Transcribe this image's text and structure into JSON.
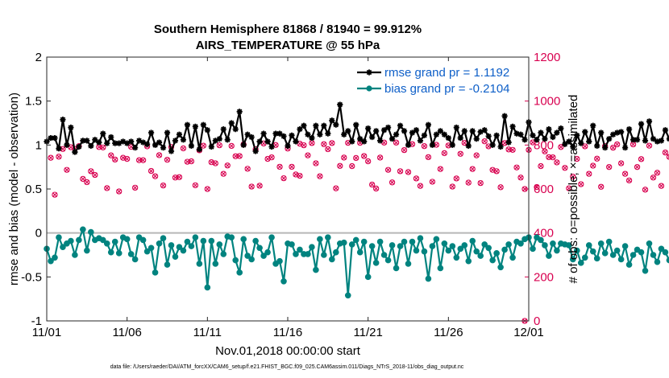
{
  "chart_data": {
    "type": "line",
    "title": "Southern Hemisphere 81868 / 81940 = 99.912%",
    "subtitle": "AIRS_TEMPERATURE @ 55 hPa",
    "xlabel": "Nov.01,2018 00:00:00 start",
    "ylabel": "rmse and bias (model - observation)",
    "y2label": "# of obs: o=possible; ×=assimilated",
    "footnote": "data file: /Users/raeder/DAI/ATM_forcXX/CAM6_setup/f.e21.FHIST_BGC.f09_025.CAM6assim.011/Diags_NTrS_2018-11/obs_diag_output.nc",
    "xlim": [
      0,
      30
    ],
    "ylim": [
      -1,
      2
    ],
    "y2lim": [
      0,
      1200
    ],
    "x_ticks": [
      0,
      5,
      10,
      15,
      20,
      25,
      30
    ],
    "x_tick_labels": [
      "11/01",
      "11/06",
      "11/11",
      "11/16",
      "11/21",
      "11/26",
      "12/01"
    ],
    "y_ticks": [
      -1,
      -0.5,
      0,
      0.5,
      1,
      1.5,
      2
    ],
    "y_tick_labels": [
      "-1",
      "-0.5",
      "0",
      "0.5",
      "1",
      "1.5",
      "2"
    ],
    "y2_ticks": [
      0,
      200,
      400,
      600,
      800,
      1000,
      1200
    ],
    "y2_tick_labels": [
      "0",
      "200",
      "400",
      "600",
      "800",
      "1000",
      "1200"
    ],
    "x_step_days": 0.25,
    "zero_line": true,
    "series": [
      {
        "name": "rmse grand pr = 1.1192",
        "legend_label": "rmse grand pr = 1.1192",
        "axis": "left",
        "color": "#000000",
        "marker": "star",
        "values": [
          1.04,
          1.08,
          1.08,
          0.96,
          1.29,
          1.0,
          1.2,
          0.92,
          0.98,
          1.05,
          1.05,
          0.99,
          1.06,
          1.03,
          1.13,
          1.02,
          1.09,
          1.02,
          1.02,
          1.04,
          1.02,
          1.04,
          0.97,
          1.05,
          1.03,
          1.01,
          1.14,
          1.0,
          1.03,
          0.97,
          1.14,
          0.93,
          1.05,
          1.12,
          1.06,
          1.23,
          0.99,
          1.21,
          0.95,
          1.23,
          1.17,
          0.98,
          1.05,
          1.07,
          1.18,
          1.06,
          1.25,
          1.18,
          1.38,
          1.0,
          1.12,
          1.09,
          0.93,
          1.04,
          1.13,
          1.04,
          0.98,
          1.13,
          1.13,
          1.1,
          0.99,
          1.11,
          1.04,
          1.18,
          1.22,
          1.12,
          1.08,
          1.22,
          1.12,
          1.22,
          1.13,
          1.28,
          1.23,
          1.46,
          1.12,
          1.16,
          1.04,
          1.23,
          1.07,
          1.04,
          1.19,
          1.09,
          1.16,
          1.05,
          1.17,
          1.2,
          1.07,
          1.12,
          1.22,
          1.16,
          1.0,
          1.14,
          1.17,
          1.05,
          1.11,
          1.23,
          1.0,
          1.12,
          1.16,
          1.12,
          1.08,
          1.0,
          1.2,
          1.08,
          1.16,
          0.99,
          1.16,
          1.07,
          1.15,
          1.17,
          1.1,
          1.0,
          1.11,
          0.98,
          1.33,
          1.03,
          1.21,
          1.13,
          1.12,
          1.06,
          1.26,
          1.11,
          1.06,
          1.14,
          1.07,
          1.18,
          1.09,
          1.14,
          1.19,
          1.01,
          1.04,
          0.98,
          1.11,
          1.02,
          1.15,
          1.04,
          1.22,
          0.99,
          1.14,
          0.97,
          1.07,
          1.12,
          1.14,
          1.15,
          0.97,
          1.18,
          1.06,
          1.06,
          1.24,
          1.05,
          1.27,
          1.07,
          1.04,
          1.05,
          1.17,
          1.07,
          1.06,
          1.03,
          1.0,
          1.13,
          1.14,
          1.12,
          1.1,
          1.11,
          1.03,
          1.11,
          1.13,
          1.05,
          1.09,
          1.02,
          1.11,
          1.0,
          1.1,
          1.06,
          1.05,
          1.07,
          1.05
        ]
      },
      {
        "name": "bias grand pr = -0.2104",
        "legend_label": "bias grand pr = -0.2104",
        "axis": "left",
        "color": "#00837f",
        "marker": "circle",
        "values": [
          -0.18,
          -0.32,
          -0.28,
          -0.05,
          -0.16,
          -0.12,
          -0.09,
          -0.25,
          -0.08,
          0.04,
          -0.2,
          0.01,
          -0.08,
          -0.06,
          -0.08,
          -0.12,
          -0.22,
          -0.1,
          -0.23,
          -0.05,
          -0.07,
          -0.24,
          -0.3,
          -0.05,
          -0.08,
          -0.21,
          -0.17,
          -0.45,
          -0.12,
          -0.06,
          -0.36,
          -0.14,
          -0.27,
          -0.16,
          -0.2,
          -0.1,
          -0.15,
          -0.05,
          -0.35,
          -0.09,
          -0.62,
          -0.09,
          -0.35,
          -0.13,
          -0.24,
          -0.04,
          -0.05,
          -0.31,
          -0.45,
          -0.07,
          -0.26,
          -0.3,
          -0.09,
          -0.17,
          -0.26,
          -0.22,
          -0.05,
          -0.35,
          -0.32,
          -0.55,
          -0.12,
          -0.13,
          -0.24,
          -0.19,
          -0.24,
          -0.24,
          -0.16,
          -0.42,
          -0.07,
          -0.25,
          -0.05,
          -0.3,
          -0.22,
          -0.12,
          -0.11,
          -0.71,
          -0.13,
          -0.08,
          -0.22,
          -0.1,
          -0.5,
          -0.15,
          -0.34,
          -0.1,
          -0.25,
          -0.31,
          -0.14,
          -0.4,
          -0.15,
          -0.1,
          -0.35,
          -0.1,
          -0.2,
          -0.06,
          -0.21,
          -0.52,
          -0.15,
          -0.07,
          -0.4,
          -0.12,
          -0.2,
          -0.15,
          -0.28,
          -0.18,
          -0.14,
          -0.32,
          -0.09,
          -0.21,
          -0.26,
          -0.13,
          -0.17,
          -0.31,
          -0.23,
          -0.39,
          -0.19,
          -0.13,
          -0.28,
          -0.1,
          -0.12,
          -0.07,
          -0.05,
          -0.18,
          -0.05,
          -0.08,
          -0.14,
          -0.26,
          -0.12,
          -0.2,
          -0.12,
          -0.13,
          -0.14,
          -0.3,
          -0.2,
          -0.34,
          -0.28,
          -0.14,
          -0.21,
          -0.29,
          -0.12,
          -0.23,
          -0.1,
          -0.25,
          -0.2,
          -0.3,
          -0.15,
          -0.36,
          -0.25,
          -0.19,
          -0.22,
          -0.43,
          -0.12,
          -0.25,
          -0.33,
          -0.18,
          -0.22,
          -0.31,
          -0.27,
          -0.2,
          -0.17,
          -0.31,
          -0.28,
          -0.14,
          -0.25,
          -0.22,
          -0.28,
          -0.38,
          -0.23,
          -0.16,
          -0.27,
          -0.22,
          -0.29,
          -0.18,
          -0.25,
          -0.43,
          -0.32,
          -0.2
        ]
      },
      {
        "name": "obs possible",
        "legend_label": "",
        "axis": "right",
        "color": "#d8004f",
        "marker": "circle-open",
        "values": [
          742,
          574,
          747,
          782,
          687,
          790,
          782,
          795,
          646,
          631,
          681,
          664,
          791,
          789,
          604,
          753,
          734,
          589,
          742,
          737,
          792,
          606,
          731,
          731,
          794,
          682,
          658,
          754,
          616,
          733,
          791,
          652,
          654,
          785,
          724,
          726,
          617,
          776,
          797,
          600,
          722,
          717,
          799,
          669,
          707,
          796,
          749,
          750,
          803,
          692,
          611,
          781,
          615,
          807,
          737,
          744,
          800,
          701,
          649,
          784,
          701,
          666,
          806,
          799,
          753,
          809,
          717,
          658,
          804,
          781,
          809,
          603,
          705,
          743,
          810,
          704,
          741,
          810,
          750,
          726,
          620,
          602,
          743,
          811,
          687,
          630,
          811,
          681,
          777,
          677,
          804,
          648,
          614,
          795,
          745,
          633,
          801,
          691,
          763,
          798,
          611,
          648,
          760,
          810,
          629,
          691,
          753,
          627,
          817,
          794,
          687,
          681,
          608,
          809,
          780,
          778,
          698,
          652,
          600,
          778,
          812,
          609,
          704,
          771,
          745,
          744,
          721,
          791,
          696,
          603,
          656,
          737,
          622,
          794,
          669,
          706,
          738,
          610,
          795,
          700,
          788,
          803,
          717,
          669,
          639,
          803,
          700,
          736,
          597,
          797,
          652,
          674,
          614,
          766,
          746,
          727,
          792,
          705,
          624,
          790,
          713,
          662,
          734,
          805,
          579,
          764,
          734,
          609,
          740,
          731,
          765,
          604,
          747,
          763,
          794
        ],
        "outliers": [
          {
            "day": 15.75,
            "value": 660
          },
          {
            "day": 29.75,
            "value": 0
          }
        ]
      },
      {
        "name": "obs assimilated",
        "legend_label": "",
        "axis": "right",
        "color": "#d8004f",
        "marker": "cross",
        "note": "assimilated counts overlay the possible counts almost exactly"
      }
    ]
  }
}
